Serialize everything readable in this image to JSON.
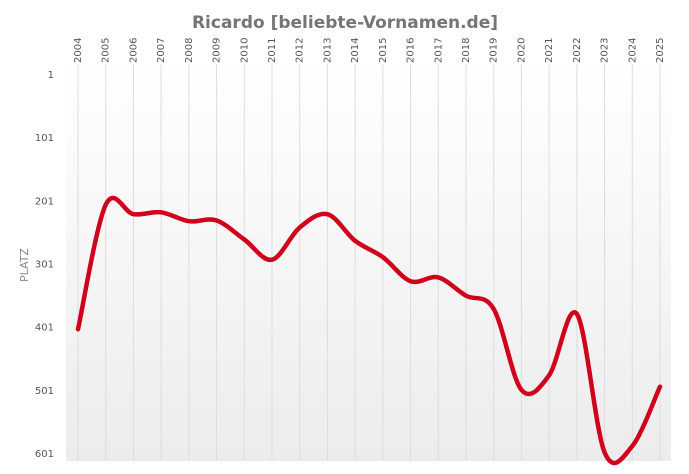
{
  "chart_data": {
    "type": "line",
    "title": "Ricardo [beliebte-Vornamen.de]",
    "xlabel": "",
    "ylabel": "PLATZ",
    "x": [
      "2004",
      "2005",
      "2006",
      "2007",
      "2008",
      "2009",
      "2010",
      "2011",
      "2012",
      "2013",
      "2014",
      "2015",
      "2016",
      "2017",
      "2018",
      "2019",
      "2020",
      "2021",
      "2022",
      "2023",
      "2024",
      "2025"
    ],
    "y_ticks": [
      "1",
      "101",
      "201",
      "301",
      "401",
      "501",
      "601"
    ],
    "ylim": [
      1,
      601
    ],
    "y_inverted": true,
    "grid": "vertical",
    "legend": "none",
    "series": [
      {
        "values": [
          405,
          208,
          223,
          220,
          234,
          233,
          263,
          295,
          244,
          223,
          265,
          291,
          329,
          323,
          352,
          373,
          501,
          478,
          381,
          600,
          590,
          496
        ],
        "color": "#d0021b"
      }
    ]
  }
}
